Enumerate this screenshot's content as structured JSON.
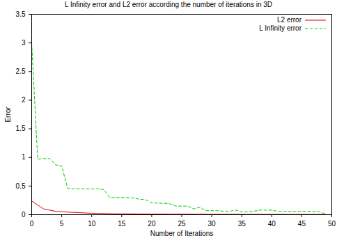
{
  "chart_data": {
    "type": "line",
    "title": "L Infinity error and L2 error according the number of iterations in 3D",
    "x_label": "Number of Iterations",
    "y_label": "Error",
    "x": [
      0,
      1,
      2,
      3,
      4,
      5,
      6,
      7,
      8,
      9,
      10,
      11,
      12,
      13,
      14,
      15,
      16,
      17,
      18,
      19,
      20,
      21,
      22,
      23,
      24,
      25,
      26,
      27,
      28,
      29,
      30,
      31,
      32,
      33,
      34,
      35,
      36,
      37,
      38,
      39,
      40,
      41,
      42,
      43,
      44,
      45,
      46,
      47,
      48,
      49
    ],
    "series": [
      {
        "name": "L2 error",
        "color": "#e00000",
        "line_style": "solid",
        "values": [
          0.24,
          0.17,
          0.1,
          0.08,
          0.06,
          0.05,
          0.045,
          0.04,
          0.035,
          0.03,
          0.025,
          0.022,
          0.02,
          0.018,
          0.016,
          0.015,
          0.014,
          0.013,
          0.012,
          0.011,
          0.01,
          0.01,
          0.009,
          0.009,
          0.008,
          0.008,
          0.008,
          0.007,
          0.007,
          0.007,
          0.006,
          0.006,
          0.006,
          0.006,
          0.006,
          0.005,
          0.005,
          0.005,
          0.005,
          0.005,
          0.005,
          0.005,
          0.004,
          0.004,
          0.004,
          0.004,
          0.004,
          0.004,
          0.004,
          0.003
        ]
      },
      {
        "name": "L Infinity error",
        "color": "#00cc00",
        "line_style": "dashed",
        "values": [
          3.0,
          0.97,
          0.98,
          0.98,
          0.87,
          0.85,
          0.46,
          0.45,
          0.45,
          0.45,
          0.45,
          0.45,
          0.44,
          0.3,
          0.3,
          0.3,
          0.3,
          0.29,
          0.27,
          0.26,
          0.21,
          0.2,
          0.2,
          0.19,
          0.15,
          0.15,
          0.15,
          0.1,
          0.13,
          0.07,
          0.07,
          0.07,
          0.06,
          0.06,
          0.08,
          0.05,
          0.05,
          0.06,
          0.08,
          0.08,
          0.08,
          0.06,
          0.06,
          0.06,
          0.06,
          0.06,
          0.06,
          0.06,
          0.05,
          0.01
        ]
      }
    ],
    "xlim": [
      0,
      50
    ],
    "xticks": [
      0,
      5,
      10,
      15,
      20,
      25,
      30,
      35,
      40,
      45,
      50
    ],
    "ylim": [
      0,
      3.5
    ],
    "yticks": [
      0,
      0.5,
      1,
      1.5,
      2,
      2.5,
      3,
      3.5
    ],
    "grid": false,
    "legend": "top-right"
  }
}
